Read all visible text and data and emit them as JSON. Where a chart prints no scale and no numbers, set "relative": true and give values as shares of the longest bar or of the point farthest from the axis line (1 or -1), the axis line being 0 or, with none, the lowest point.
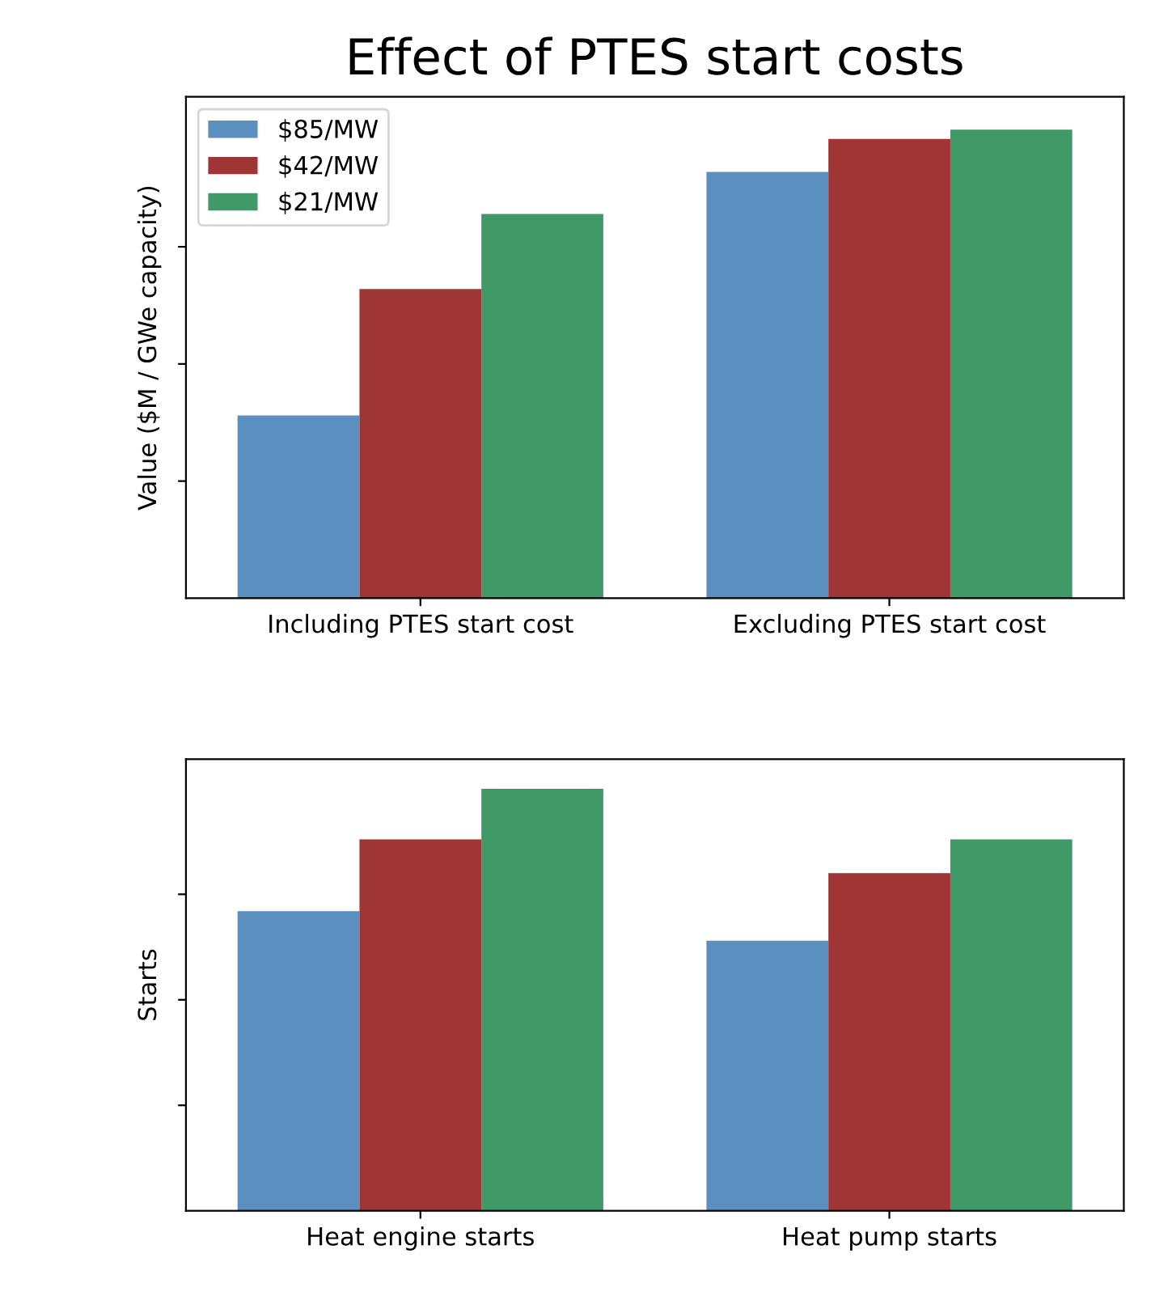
{
  "chart_data": [
    {
      "type": "bar",
      "title": "Effect of PTES start costs",
      "ylabel": "Value ($M / GWe capacity)",
      "relative": true,
      "legend": "top left",
      "categories": [
        "Including PTES start cost",
        "Excluding PTES start cost"
      ],
      "series": [
        {
          "name": "$85/MW",
          "color": "#5a8fc0",
          "values": [
            0.39,
            0.91
          ]
        },
        {
          "name": "$42/MW",
          "color": "#a03535",
          "values": [
            0.66,
            0.98
          ]
        },
        {
          "name": "$21/MW",
          "color": "#3f9a68",
          "values": [
            0.82,
            1.0
          ]
        }
      ]
    },
    {
      "type": "bar",
      "ylabel": "Starts",
      "relative": true,
      "categories": [
        "Heat engine starts",
        "Heat pump starts"
      ],
      "series": [
        {
          "color": "#5a8fc0",
          "values": [
            0.71,
            0.64
          ]
        },
        {
          "color": "#a03535",
          "values": [
            0.88,
            0.8
          ]
        },
        {
          "color": "#3f9a68",
          "values": [
            1.0,
            0.88
          ]
        }
      ]
    }
  ]
}
